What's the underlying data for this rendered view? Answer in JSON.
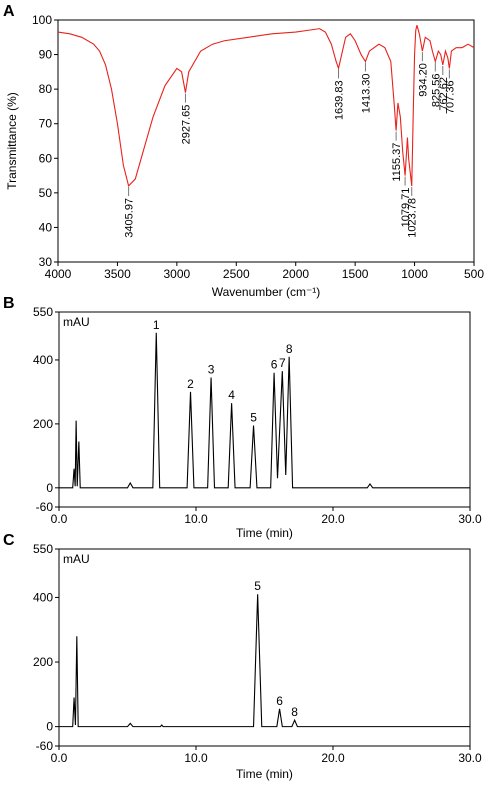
{
  "chart_data": [
    {
      "type": "line",
      "panel_label": "A",
      "x_label": "Wavenumber (cm⁻¹)",
      "y_label": "Transmittance (%)",
      "xlim": [
        4000,
        500
      ],
      "xticks": [
        4000,
        3500,
        3000,
        2500,
        2000,
        1500,
        1000,
        500
      ],
      "ylim": [
        30,
        100
      ],
      "yticks": [
        30,
        40,
        50,
        60,
        70,
        80,
        90,
        100
      ],
      "x": [
        4000,
        3900,
        3800,
        3700,
        3650,
        3600,
        3550,
        3500,
        3450,
        3405.97,
        3350,
        3300,
        3200,
        3100,
        3000,
        2960,
        2927.65,
        2900,
        2800,
        2700,
        2600,
        2400,
        2200,
        2000,
        1900,
        1800,
        1750,
        1700,
        1660,
        1639.83,
        1620,
        1580,
        1540,
        1500,
        1450,
        1413.3,
        1380,
        1300,
        1250,
        1200,
        1170,
        1155.37,
        1140,
        1120,
        1100,
        1079.71,
        1060,
        1050,
        1023.78,
        1010,
        1000,
        990,
        980,
        960,
        934.2,
        910,
        870,
        850,
        825.56,
        800,
        780,
        762.62,
        740,
        720,
        707.36,
        690,
        650,
        600,
        550,
        500
      ],
      "series": [
        {
          "color": "#e8221c",
          "values": [
            96.5,
            96,
            95,
            93,
            91,
            87,
            80,
            70,
            58,
            52,
            54,
            60,
            72,
            81,
            86,
            85,
            79,
            85,
            91,
            93,
            94,
            95,
            96,
            96.5,
            97,
            97.5,
            96.5,
            93,
            88,
            86,
            89,
            95,
            96,
            94,
            90,
            88,
            91,
            93,
            92,
            88,
            75,
            68,
            76,
            72,
            62,
            55,
            66,
            60,
            52,
            75,
            90,
            97,
            98.5,
            96,
            91,
            95,
            94,
            91,
            88,
            91,
            90,
            87,
            91,
            89,
            86,
            91,
            92,
            92,
            93,
            92
          ]
        }
      ],
      "annotations": [
        {
          "value": 3405.97,
          "y": 52,
          "label": "3405.97"
        },
        {
          "value": 2927.65,
          "y": 79,
          "label": "2927.65"
        },
        {
          "value": 1639.83,
          "y": 86,
          "label": "1639.83"
        },
        {
          "value": 1413.3,
          "y": 88,
          "label": "1413.30"
        },
        {
          "value": 1155.37,
          "y": 68,
          "label": "1155.37"
        },
        {
          "value": 1079.71,
          "y": 55,
          "label": "1079.71"
        },
        {
          "value": 1023.78,
          "y": 52,
          "label": "1023.78"
        },
        {
          "value": 934.2,
          "y": 91,
          "label": "934.20"
        },
        {
          "value": 825.56,
          "y": 88,
          "label": "825.56"
        },
        {
          "value": 762.62,
          "y": 87,
          "label": "762.62"
        },
        {
          "value": 707.36,
          "y": 86,
          "label": "707.36"
        }
      ]
    },
    {
      "type": "line",
      "panel_label": "B",
      "x_label": "Time (min)",
      "unit_label": "mAU",
      "xlim": [
        0,
        30
      ],
      "xticks": [
        {
          "value": 0,
          "label": "0.0"
        },
        {
          "value": 10,
          "label": "10.0"
        },
        {
          "value": 20,
          "label": "20.0"
        },
        {
          "value": 30,
          "label": "30.0"
        }
      ],
      "ylim": [
        -60,
        550
      ],
      "yticks": [
        -60,
        0,
        200,
        400,
        550
      ],
      "x": [
        0,
        1.0,
        1.1,
        1.18,
        1.25,
        1.33,
        1.45,
        1.55,
        5.0,
        5.2,
        5.4,
        6.85,
        7.1,
        7.35,
        9.35,
        9.6,
        9.85,
        10.85,
        11.1,
        11.35,
        12.35,
        12.6,
        12.85,
        13.95,
        14.2,
        14.45,
        15.45,
        15.7,
        15.95,
        16.3,
        16.55,
        16.8,
        17.05,
        22.5,
        22.7,
        22.9,
        30
      ],
      "series": [
        {
          "color": "#000000",
          "values": [
            0,
            0,
            60,
            5,
            210,
            5,
            145,
            0,
            0,
            15,
            0,
            0,
            485,
            0,
            0,
            300,
            0,
            0,
            345,
            0,
            0,
            265,
            0,
            0,
            195,
            0,
            0,
            360,
            30,
            365,
            40,
            410,
            0,
            0,
            12,
            0,
            0
          ]
        }
      ],
      "peak_labels": [
        {
          "x": 7.1,
          "y": 485,
          "label": "1"
        },
        {
          "x": 9.6,
          "y": 300,
          "label": "2"
        },
        {
          "x": 11.1,
          "y": 345,
          "label": "3"
        },
        {
          "x": 12.6,
          "y": 265,
          "label": "4"
        },
        {
          "x": 14.2,
          "y": 195,
          "label": "5"
        },
        {
          "x": 15.7,
          "y": 360,
          "label": "6"
        },
        {
          "x": 16.3,
          "y": 365,
          "label": "7"
        },
        {
          "x": 16.8,
          "y": 410,
          "label": "8"
        }
      ]
    },
    {
      "type": "line",
      "panel_label": "C",
      "x_label": "Time (min)",
      "unit_label": "mAU",
      "xlim": [
        0,
        30
      ],
      "xticks": [
        {
          "value": 0,
          "label": "0.0"
        },
        {
          "value": 10,
          "label": "10.0"
        },
        {
          "value": 20,
          "label": "20.0"
        },
        {
          "value": 30,
          "label": "30.0"
        }
      ],
      "ylim": [
        -60,
        550
      ],
      "yticks": [
        -60,
        0,
        200,
        400,
        550
      ],
      "x": [
        0,
        1.0,
        1.1,
        1.2,
        1.3,
        1.4,
        5.0,
        5.2,
        5.4,
        7.4,
        7.5,
        7.6,
        14.2,
        14.5,
        14.8,
        15.9,
        16.1,
        16.3,
        17.0,
        17.2,
        17.4,
        30
      ],
      "series": [
        {
          "color": "#000000",
          "values": [
            0,
            0,
            90,
            5,
            280,
            0,
            0,
            10,
            0,
            0,
            5,
            0,
            0,
            410,
            0,
            0,
            55,
            0,
            0,
            20,
            0,
            0
          ]
        }
      ],
      "peak_labels": [
        {
          "x": 14.5,
          "y": 410,
          "label": "5"
        },
        {
          "x": 16.1,
          "y": 55,
          "label": "6"
        },
        {
          "x": 17.2,
          "y": 20,
          "label": "8"
        }
      ]
    }
  ]
}
